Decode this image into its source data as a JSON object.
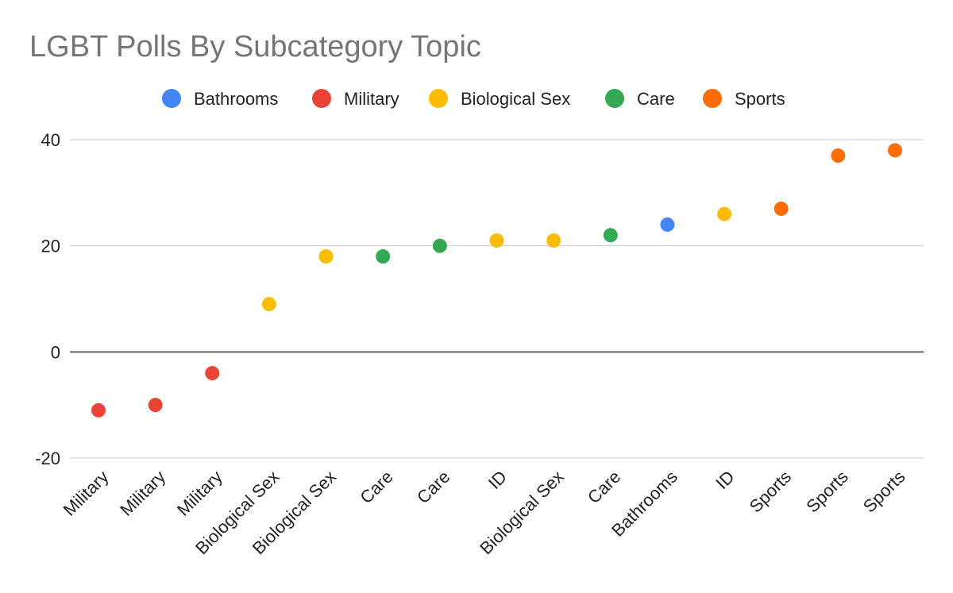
{
  "chart_data": {
    "type": "scatter",
    "title": "LGBT Polls By Subcategory Topic",
    "xlabel": "",
    "ylabel": "",
    "ylim": [
      -20,
      40
    ],
    "yticks": [
      40,
      20,
      0,
      -20
    ],
    "grid": true,
    "legend_position": "top",
    "legend": [
      {
        "name": "Bathrooms",
        "color": "#4285F4"
      },
      {
        "name": "Military",
        "color": "#EA4335"
      },
      {
        "name": "Biological Sex",
        "color": "#FBBC04"
      },
      {
        "name": "Care",
        "color": "#34A853"
      },
      {
        "name": "Sports",
        "color": "#FF6D01"
      }
    ],
    "categories": [
      "Military",
      "Military",
      "Military",
      "Biological Sex",
      "Biological Sex",
      "Care",
      "Care",
      "ID",
      "Biological Sex",
      "Care",
      "Bathrooms",
      "ID",
      "Sports",
      "Sports",
      "Sports"
    ],
    "points": [
      {
        "category": "Military",
        "value": -11,
        "color": "#EA4335"
      },
      {
        "category": "Military",
        "value": -10,
        "color": "#EA4335"
      },
      {
        "category": "Military",
        "value": -4,
        "color": "#EA4335"
      },
      {
        "category": "Biological Sex",
        "value": 9,
        "color": "#FBBC04"
      },
      {
        "category": "Biological Sex",
        "value": 18,
        "color": "#FBBC04"
      },
      {
        "category": "Care",
        "value": 18,
        "color": "#34A853"
      },
      {
        "category": "Care",
        "value": 20,
        "color": "#34A853"
      },
      {
        "category": "ID",
        "value": 21,
        "color": "#FBBC04"
      },
      {
        "category": "Biological Sex",
        "value": 21,
        "color": "#FBBC04"
      },
      {
        "category": "Care",
        "value": 22,
        "color": "#34A853"
      },
      {
        "category": "Bathrooms",
        "value": 24,
        "color": "#4285F4"
      },
      {
        "category": "ID",
        "value": 26,
        "color": "#FBBC04"
      },
      {
        "category": "Sports",
        "value": 27,
        "color": "#FF6D01"
      },
      {
        "category": "Sports",
        "value": 37,
        "color": "#FF6D01"
      },
      {
        "category": "Sports",
        "value": 38,
        "color": "#FF6D01"
      }
    ]
  }
}
